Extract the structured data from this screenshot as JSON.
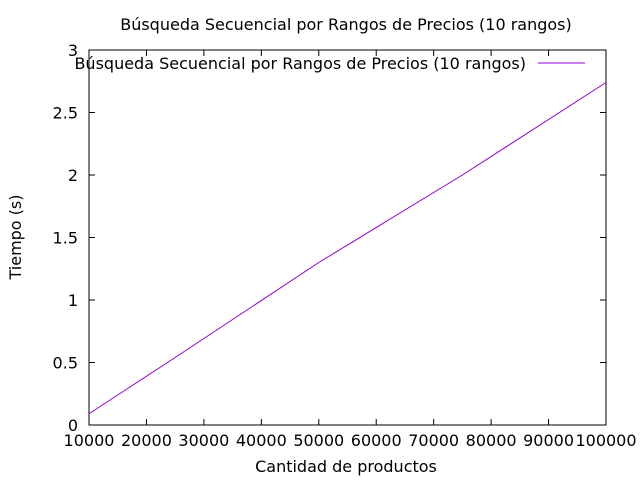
{
  "chart_data": {
    "type": "line",
    "title": "Búsqueda Secuencial por Rangos de Precios (10 rangos)",
    "xlabel": "Cantidad de productos",
    "ylabel": "Tiempo (s)",
    "xlim": [
      10000,
      100000
    ],
    "ylim": [
      0,
      3
    ],
    "xticks": [
      10000,
      20000,
      30000,
      40000,
      50000,
      60000,
      70000,
      80000,
      90000,
      100000
    ],
    "yticks": [
      0,
      0.5,
      1,
      1.5,
      2,
      2.5,
      3
    ],
    "ytick_labels": [
      "0",
      "0.5",
      "1",
      "1.5",
      "2",
      "2.5",
      "3"
    ],
    "grid": false,
    "legend_position": "top-right",
    "series": [
      {
        "name": "Búsqueda Secuencial por Rangos de Precios (10 rangos)",
        "color": "#9400d3",
        "x": [
          10000,
          25000,
          50000,
          75000,
          100000
        ],
        "y": [
          0.09,
          0.54,
          1.3,
          2.0,
          2.74
        ]
      }
    ]
  }
}
